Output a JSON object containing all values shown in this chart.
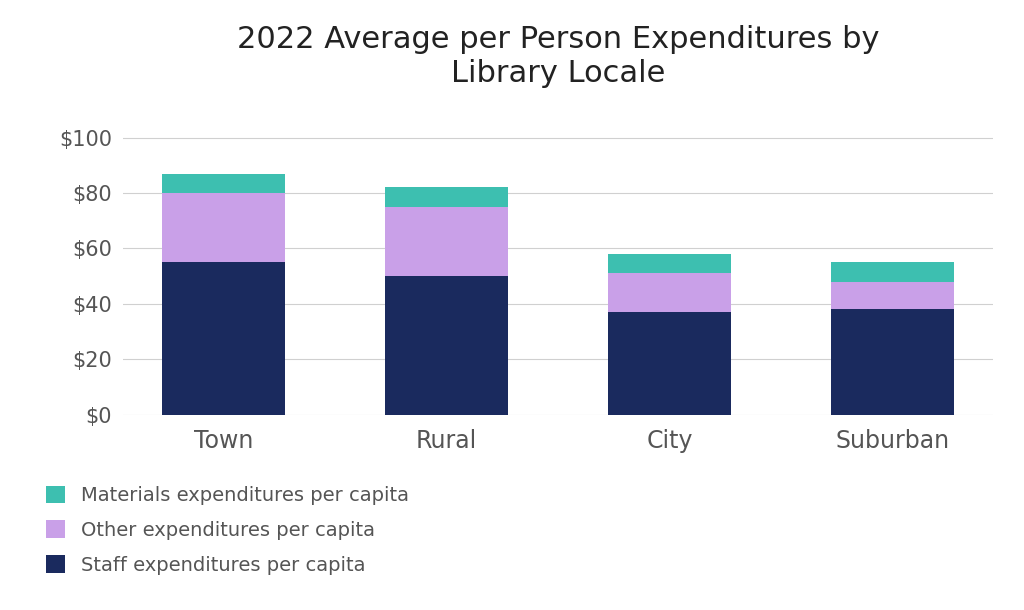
{
  "categories": [
    "Town",
    "Rural",
    "City",
    "Suburban"
  ],
  "staff": [
    55,
    50,
    37,
    38
  ],
  "other": [
    25,
    25,
    14,
    10
  ],
  "materials": [
    7,
    7,
    7,
    7
  ],
  "colors": {
    "staff": "#1a2a5e",
    "other": "#c9a0e8",
    "materials": "#3dbfb0"
  },
  "title": "2022 Average per Person Expenditures by\nLibrary Locale",
  "title_fontsize": 22,
  "legend_labels": [
    "Materials expenditures per capita",
    "Other expenditures per capita",
    "Staff expenditures per capita"
  ],
  "ylim": [
    0,
    110
  ],
  "yticks": [
    0,
    20,
    40,
    60,
    80,
    100
  ],
  "bar_width": 0.55,
  "background_color": "#ffffff",
  "grid_color": "#d0d0d0",
  "tick_fontsize": 15,
  "legend_fontsize": 14,
  "xlabel_fontsize": 17,
  "text_color": "#555555"
}
